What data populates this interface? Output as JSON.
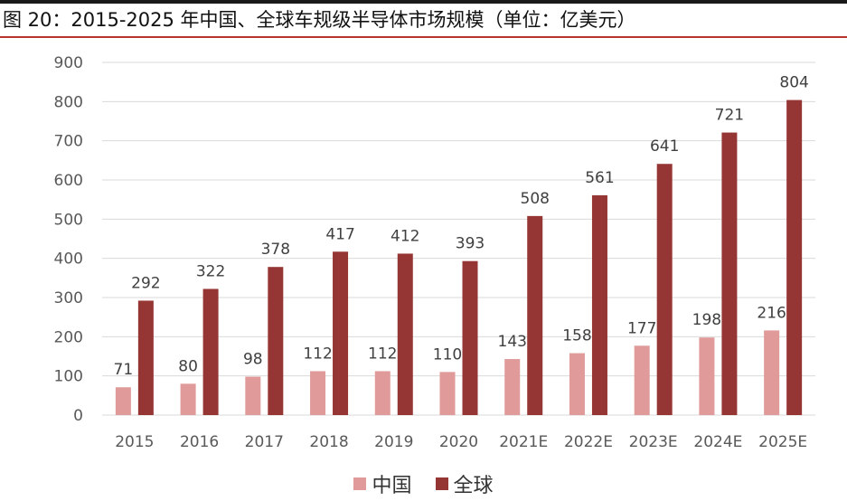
{
  "title": "图 20：2015-2025 年中国、全球车规级半导体市场规模（单位：亿美元）",
  "colors": {
    "china": "#df9a99",
    "global": "#963634",
    "grid": "#d9d9d9",
    "accent": "#b8352f"
  },
  "chart_data": {
    "type": "bar",
    "title": "图 20：2015-2025 年中国、全球车规级半导体市场规模（单位：亿美元）",
    "categories": [
      "2015",
      "2016",
      "2017",
      "2018",
      "2019",
      "2020",
      "2021E",
      "2022E",
      "2023E",
      "2024E",
      "2025E"
    ],
    "series": [
      {
        "name": "中国",
        "values": [
          71,
          80,
          98,
          112,
          112,
          110,
          143,
          158,
          177,
          198,
          216
        ]
      },
      {
        "name": "全球",
        "values": [
          292,
          322,
          378,
          417,
          412,
          393,
          508,
          561,
          641,
          721,
          804
        ]
      }
    ],
    "yticks": [
      0,
      100,
      200,
      300,
      400,
      500,
      600,
      700,
      800,
      900
    ],
    "ylim": [
      0,
      900
    ],
    "grid": true,
    "legend": "bottom",
    "data_labels": true
  }
}
